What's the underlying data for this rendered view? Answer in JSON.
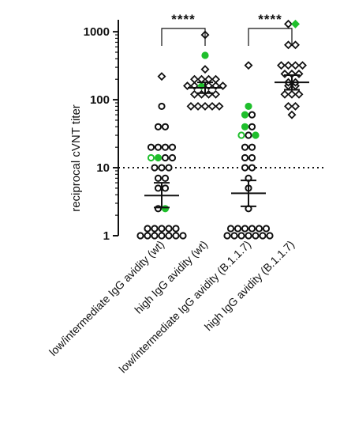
{
  "chart_data": {
    "type": "scatter",
    "yscale": "log",
    "ylabel": "reciprocal cVNT titer",
    "ylim": [
      1,
      1500
    ],
    "yticks": [
      {
        "value": 1,
        "label": "1"
      },
      {
        "value": 10,
        "label": "10"
      },
      {
        "value": 100,
        "label": "100"
      },
      {
        "value": 1000,
        "label": "1000"
      }
    ],
    "threshold": 10,
    "categories": [
      "low/intermediate IgG avidity (wt)",
      "high IgG avidity (wt)",
      "low/intermediate IgG avidity (B.1.1.7)",
      "high IgG avidity (B.1.1.7)"
    ],
    "colors": {
      "black": "#111111",
      "green": "#1fbf2c"
    },
    "groups": [
      {
        "category": "low/intermediate IgG avidity (wt)",
        "mean": 3.9,
        "error": [
          2.6,
          6.0
        ],
        "points": [
          {
            "y": 220,
            "shape": "diamond",
            "color": "black",
            "fill": "open"
          },
          {
            "y": 80,
            "shape": "circle",
            "color": "black",
            "fill": "open"
          },
          {
            "y": 40,
            "shape": "circle",
            "color": "black",
            "fill": "open"
          },
          {
            "y": 40,
            "shape": "circle",
            "color": "black",
            "fill": "open"
          },
          {
            "y": 20,
            "shape": "circle",
            "color": "black",
            "fill": "open"
          },
          {
            "y": 20,
            "shape": "circle",
            "color": "black",
            "fill": "open"
          },
          {
            "y": 20,
            "shape": "circle",
            "color": "black",
            "fill": "open"
          },
          {
            "y": 20,
            "shape": "circle",
            "color": "black",
            "fill": "open"
          },
          {
            "y": 14,
            "shape": "circle",
            "color": "green",
            "fill": "open"
          },
          {
            "y": 14,
            "shape": "circle",
            "color": "green",
            "fill": "solid"
          },
          {
            "y": 14,
            "shape": "circle",
            "color": "black",
            "fill": "open"
          },
          {
            "y": 14,
            "shape": "circle",
            "color": "black",
            "fill": "open"
          },
          {
            "y": 10,
            "shape": "circle",
            "color": "black",
            "fill": "open"
          },
          {
            "y": 10,
            "shape": "circle",
            "color": "black",
            "fill": "open"
          },
          {
            "y": 10,
            "shape": "circle",
            "color": "black",
            "fill": "open"
          },
          {
            "y": 7,
            "shape": "circle",
            "color": "black",
            "fill": "open"
          },
          {
            "y": 7,
            "shape": "circle",
            "color": "black",
            "fill": "open"
          },
          {
            "y": 5,
            "shape": "circle",
            "color": "black",
            "fill": "open"
          },
          {
            "y": 5,
            "shape": "circle",
            "color": "black",
            "fill": "open"
          },
          {
            "y": 2.5,
            "shape": "circle",
            "color": "black",
            "fill": "open"
          },
          {
            "y": 2.5,
            "shape": "circle",
            "color": "green",
            "fill": "solid"
          },
          {
            "y": 1,
            "shape": "circle",
            "color": "black",
            "fill": "open"
          },
          {
            "y": 1,
            "shape": "circle",
            "color": "black",
            "fill": "open"
          },
          {
            "y": 1,
            "shape": "circle",
            "color": "black",
            "fill": "open"
          },
          {
            "y": 1,
            "shape": "circle",
            "color": "black",
            "fill": "open"
          },
          {
            "y": 1,
            "shape": "circle",
            "color": "black",
            "fill": "open"
          },
          {
            "y": 1,
            "shape": "circle",
            "color": "black",
            "fill": "open"
          },
          {
            "y": 1,
            "shape": "circle",
            "color": "black",
            "fill": "open"
          },
          {
            "y": 1,
            "shape": "circle",
            "color": "black",
            "fill": "open"
          },
          {
            "y": 1,
            "shape": "circle",
            "color": "black",
            "fill": "open"
          },
          {
            "y": 1,
            "shape": "circle",
            "color": "black",
            "fill": "open"
          },
          {
            "y": 1,
            "shape": "circle",
            "color": "black",
            "fill": "open"
          },
          {
            "y": 1,
            "shape": "circle",
            "color": "black",
            "fill": "open"
          }
        ]
      },
      {
        "category": "high IgG avidity (wt)",
        "mean": 150,
        "error": [
          125,
          180
        ],
        "points": [
          {
            "y": 900,
            "shape": "diamond",
            "color": "black",
            "fill": "open"
          },
          {
            "y": 450,
            "shape": "circle",
            "color": "green",
            "fill": "solid"
          },
          {
            "y": 280,
            "shape": "diamond",
            "color": "black",
            "fill": "open"
          },
          {
            "y": 200,
            "shape": "diamond",
            "color": "black",
            "fill": "open"
          },
          {
            "y": 200,
            "shape": "diamond",
            "color": "black",
            "fill": "open"
          },
          {
            "y": 200,
            "shape": "diamond",
            "color": "black",
            "fill": "open"
          },
          {
            "y": 200,
            "shape": "diamond",
            "color": "black",
            "fill": "open"
          },
          {
            "y": 160,
            "shape": "diamond",
            "color": "black",
            "fill": "open"
          },
          {
            "y": 160,
            "shape": "diamond",
            "color": "black",
            "fill": "open"
          },
          {
            "y": 160,
            "shape": "diamond",
            "color": "green",
            "fill": "solid"
          },
          {
            "y": 160,
            "shape": "diamond",
            "color": "black",
            "fill": "open"
          },
          {
            "y": 160,
            "shape": "diamond",
            "color": "black",
            "fill": "open"
          },
          {
            "y": 160,
            "shape": "diamond",
            "color": "black",
            "fill": "open"
          },
          {
            "y": 120,
            "shape": "diamond",
            "color": "black",
            "fill": "open"
          },
          {
            "y": 120,
            "shape": "diamond",
            "color": "black",
            "fill": "open"
          },
          {
            "y": 120,
            "shape": "diamond",
            "color": "black",
            "fill": "open"
          },
          {
            "y": 120,
            "shape": "diamond",
            "color": "black",
            "fill": "open"
          },
          {
            "y": 80,
            "shape": "diamond",
            "color": "black",
            "fill": "open"
          },
          {
            "y": 80,
            "shape": "diamond",
            "color": "black",
            "fill": "open"
          },
          {
            "y": 80,
            "shape": "diamond",
            "color": "black",
            "fill": "open"
          },
          {
            "y": 80,
            "shape": "diamond",
            "color": "black",
            "fill": "open"
          },
          {
            "y": 80,
            "shape": "diamond",
            "color": "black",
            "fill": "open"
          }
        ]
      },
      {
        "category": "low/intermediate IgG avidity (B.1.1.7)",
        "mean": 4.2,
        "error": [
          2.7,
          6.5
        ],
        "points": [
          {
            "y": 320,
            "shape": "diamond",
            "color": "black",
            "fill": "open"
          },
          {
            "y": 80,
            "shape": "circle",
            "color": "green",
            "fill": "solid"
          },
          {
            "y": 60,
            "shape": "circle",
            "color": "green",
            "fill": "solid"
          },
          {
            "y": 60,
            "shape": "circle",
            "color": "black",
            "fill": "open"
          },
          {
            "y": 40,
            "shape": "circle",
            "color": "green",
            "fill": "solid"
          },
          {
            "y": 40,
            "shape": "circle",
            "color": "black",
            "fill": "open"
          },
          {
            "y": 30,
            "shape": "circle",
            "color": "green",
            "fill": "open"
          },
          {
            "y": 30,
            "shape": "circle",
            "color": "black",
            "fill": "open"
          },
          {
            "y": 30,
            "shape": "circle",
            "color": "green",
            "fill": "solid"
          },
          {
            "y": 20,
            "shape": "circle",
            "color": "black",
            "fill": "open"
          },
          {
            "y": 20,
            "shape": "circle",
            "color": "black",
            "fill": "open"
          },
          {
            "y": 14,
            "shape": "circle",
            "color": "black",
            "fill": "open"
          },
          {
            "y": 14,
            "shape": "circle",
            "color": "black",
            "fill": "open"
          },
          {
            "y": 10,
            "shape": "circle",
            "color": "black",
            "fill": "open"
          },
          {
            "y": 10,
            "shape": "circle",
            "color": "black",
            "fill": "open"
          },
          {
            "y": 7,
            "shape": "circle",
            "color": "black",
            "fill": "open"
          },
          {
            "y": 5,
            "shape": "circle",
            "color": "black",
            "fill": "open"
          },
          {
            "y": 2.5,
            "shape": "circle",
            "color": "black",
            "fill": "open"
          },
          {
            "y": 1,
            "shape": "circle",
            "color": "black",
            "fill": "open"
          },
          {
            "y": 1,
            "shape": "circle",
            "color": "black",
            "fill": "open"
          },
          {
            "y": 1,
            "shape": "circle",
            "color": "black",
            "fill": "open"
          },
          {
            "y": 1,
            "shape": "circle",
            "color": "black",
            "fill": "open"
          },
          {
            "y": 1,
            "shape": "circle",
            "color": "black",
            "fill": "open"
          },
          {
            "y": 1,
            "shape": "circle",
            "color": "black",
            "fill": "open"
          },
          {
            "y": 1,
            "shape": "circle",
            "color": "black",
            "fill": "open"
          },
          {
            "y": 1,
            "shape": "circle",
            "color": "black",
            "fill": "open"
          },
          {
            "y": 1,
            "shape": "circle",
            "color": "black",
            "fill": "open"
          },
          {
            "y": 1,
            "shape": "circle",
            "color": "black",
            "fill": "open"
          },
          {
            "y": 1,
            "shape": "circle",
            "color": "black",
            "fill": "open"
          },
          {
            "y": 1,
            "shape": "circle",
            "color": "black",
            "fill": "open"
          },
          {
            "y": 1,
            "shape": "circle",
            "color": "black",
            "fill": "open"
          }
        ]
      },
      {
        "category": "high IgG avidity (B.1.1.7)",
        "mean": 180,
        "error": [
          140,
          230
        ],
        "points": [
          {
            "y": 1300,
            "shape": "diamond",
            "color": "black",
            "fill": "open"
          },
          {
            "y": 1300,
            "shape": "diamond",
            "color": "green",
            "fill": "solid"
          },
          {
            "y": 640,
            "shape": "diamond",
            "color": "black",
            "fill": "open"
          },
          {
            "y": 640,
            "shape": "diamond",
            "color": "black",
            "fill": "open"
          },
          {
            "y": 320,
            "shape": "diamond",
            "color": "black",
            "fill": "open"
          },
          {
            "y": 320,
            "shape": "diamond",
            "color": "black",
            "fill": "open"
          },
          {
            "y": 320,
            "shape": "diamond",
            "color": "black",
            "fill": "open"
          },
          {
            "y": 320,
            "shape": "diamond",
            "color": "black",
            "fill": "open"
          },
          {
            "y": 240,
            "shape": "diamond",
            "color": "black",
            "fill": "open"
          },
          {
            "y": 240,
            "shape": "diamond",
            "color": "black",
            "fill": "open"
          },
          {
            "y": 240,
            "shape": "diamond",
            "color": "black",
            "fill": "open"
          },
          {
            "y": 180,
            "shape": "diamond",
            "color": "black",
            "fill": "open"
          },
          {
            "y": 180,
            "shape": "diamond",
            "color": "black",
            "fill": "open"
          },
          {
            "y": 160,
            "shape": "diamond",
            "color": "black",
            "fill": "open"
          },
          {
            "y": 160,
            "shape": "diamond",
            "color": "black",
            "fill": "open"
          },
          {
            "y": 120,
            "shape": "diamond",
            "color": "black",
            "fill": "open"
          },
          {
            "y": 120,
            "shape": "diamond",
            "color": "black",
            "fill": "open"
          },
          {
            "y": 120,
            "shape": "diamond",
            "color": "black",
            "fill": "open"
          },
          {
            "y": 80,
            "shape": "diamond",
            "color": "black",
            "fill": "open"
          },
          {
            "y": 80,
            "shape": "diamond",
            "color": "black",
            "fill": "open"
          },
          {
            "y": 60,
            "shape": "diamond",
            "color": "black",
            "fill": "open"
          }
        ]
      }
    ],
    "significance": [
      {
        "between": [
          "low/intermediate IgG avidity (wt)",
          "high IgG avidity (wt)"
        ],
        "label": "****"
      },
      {
        "between": [
          "low/intermediate IgG avidity (B.1.1.7)",
          "high IgG avidity (B.1.1.7)"
        ],
        "label": "****"
      }
    ]
  }
}
